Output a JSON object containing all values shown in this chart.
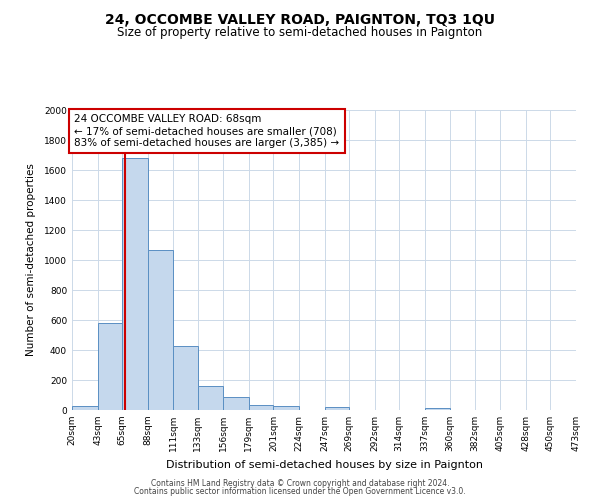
{
  "title": "24, OCCOMBE VALLEY ROAD, PAIGNTON, TQ3 1QU",
  "subtitle": "Size of property relative to semi-detached houses in Paignton",
  "xlabel": "Distribution of semi-detached houses by size in Paignton",
  "ylabel": "Number of semi-detached properties",
  "bin_edges": [
    20,
    43,
    65,
    88,
    111,
    133,
    156,
    179,
    201,
    224,
    247,
    269,
    292,
    314,
    337,
    360,
    382,
    405,
    428,
    450,
    473
  ],
  "bin_heights": [
    30,
    580,
    1680,
    1070,
    430,
    160,
    90,
    35,
    25,
    0,
    20,
    0,
    0,
    0,
    15,
    0,
    0,
    0,
    0,
    0
  ],
  "bar_color": "#c5d8ed",
  "bar_edge_color": "#5a8fc3",
  "property_size": 68,
  "annotation_line1": "24 OCCOMBE VALLEY ROAD: 68sqm",
  "annotation_line2": "← 17% of semi-detached houses are smaller (708)",
  "annotation_line3": "83% of semi-detached houses are larger (3,385) →",
  "annotation_box_color": "#ffffff",
  "annotation_box_edge_color": "#cc0000",
  "vline_color": "#cc0000",
  "ylim": [
    0,
    2000
  ],
  "yticks": [
    0,
    200,
    400,
    600,
    800,
    1000,
    1200,
    1400,
    1600,
    1800,
    2000
  ],
  "tick_labels": [
    "20sqm",
    "43sqm",
    "65sqm",
    "88sqm",
    "111sqm",
    "133sqm",
    "156sqm",
    "179sqm",
    "201sqm",
    "224sqm",
    "247sqm",
    "269sqm",
    "292sqm",
    "314sqm",
    "337sqm",
    "360sqm",
    "382sqm",
    "405sqm",
    "428sqm",
    "450sqm",
    "473sqm"
  ],
  "footer_line1": "Contains HM Land Registry data © Crown copyright and database right 2024.",
  "footer_line2": "Contains public sector information licensed under the Open Government Licence v3.0.",
  "background_color": "#ffffff",
  "grid_color": "#ccd9e8",
  "title_fontsize": 10,
  "subtitle_fontsize": 8.5,
  "xlabel_fontsize": 8,
  "ylabel_fontsize": 7.5,
  "tick_fontsize": 6.5,
  "footer_fontsize": 5.5,
  "annot_fontsize": 7.5
}
